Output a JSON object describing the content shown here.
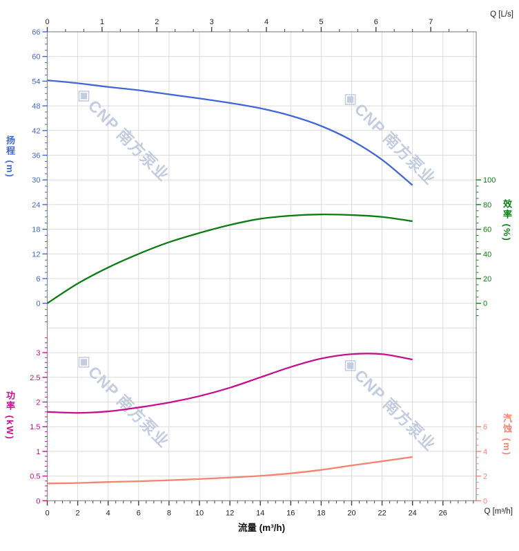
{
  "chart_data": {
    "type": "line",
    "title": "",
    "x_label_bottom": "流量 (m³/h)",
    "x_unit_bottom_label": "Q [m³/h]",
    "x_unit_top_label": "Q [L/s]",
    "x_m3h": [
      0,
      2,
      4,
      6,
      8,
      10,
      12,
      14,
      16,
      18,
      20,
      22,
      24
    ],
    "series": [
      {
        "id": "head",
        "name": "扬程",
        "unit": "m",
        "axis": "head",
        "values": [
          54.2,
          53.5,
          52.6,
          51.8,
          50.8,
          49.8,
          48.7,
          47.4,
          45.6,
          43.1,
          39.6,
          34.9,
          28.7
        ]
      },
      {
        "id": "efficiency",
        "name": "效率",
        "unit": "%",
        "axis": "efficiency",
        "values": [
          0,
          16,
          29,
          40,
          49.5,
          57,
          63.5,
          68.5,
          71,
          72,
          71.5,
          70,
          66.5
        ]
      },
      {
        "id": "power",
        "name": "功率",
        "unit": "kW",
        "axis": "power",
        "values": [
          1.8,
          1.78,
          1.81,
          1.89,
          1.99,
          2.12,
          2.29,
          2.5,
          2.71,
          2.88,
          2.97,
          2.97,
          2.86
        ]
      },
      {
        "id": "npsh",
        "name": "汽蚀",
        "unit": "m",
        "axis": "npsh",
        "values": [
          1.4,
          1.44,
          1.52,
          1.58,
          1.66,
          1.76,
          1.88,
          2.02,
          2.22,
          2.5,
          2.86,
          3.2,
          3.55
        ]
      }
    ],
    "axes": {
      "top": {
        "label": "Q [L/s]",
        "ticks": [
          0,
          1,
          2,
          3,
          4,
          5,
          6,
          7
        ],
        "minor_step": 0.3333,
        "range": [
          0,
          7.83
        ],
        "unit": "L/s"
      },
      "bottom": {
        "label": "Q [m³/h]",
        "title": "流量 (m³/h)",
        "ticks": [
          0,
          2,
          4,
          6,
          8,
          10,
          12,
          14,
          16,
          18,
          20,
          22,
          24,
          26
        ],
        "minor_step": 0.5,
        "range": [
          0,
          28.2
        ],
        "unit": "m³/h"
      },
      "head": {
        "title": "扬程 (m)",
        "ticks": [
          0,
          6,
          12,
          18,
          24,
          30,
          36,
          42,
          48,
          54,
          60,
          66
        ],
        "minor_step": 1.5,
        "range": [
          0,
          66
        ]
      },
      "efficiency": {
        "title": "效率 (%)",
        "ticks": [
          0,
          20,
          40,
          60,
          80,
          100
        ],
        "minor_step": 5,
        "range": [
          0,
          100
        ]
      },
      "power": {
        "title": "功率 (kW)",
        "ticks": [
          0,
          0.5,
          1,
          1.5,
          2,
          2.5,
          3
        ],
        "minor_step": 0.1,
        "range": [
          0,
          3
        ]
      },
      "npsh": {
        "title": "汽蚀 (m)",
        "ticks": [
          0,
          2,
          4,
          6
        ],
        "minor_step": 0.5,
        "range": [
          0,
          6
        ]
      }
    },
    "colors": {
      "head": "#4166D8",
      "efficiency": "#0B7C10",
      "power": "#C60F8D",
      "npsh": "#F4836F",
      "grid": "#DBDBDB",
      "spine": "#8A8A8A",
      "tick_text": "#1F1F1F",
      "watermark": "#C3CDE0"
    },
    "legend": "none",
    "grid": "on",
    "watermark": {
      "glyph": "◈",
      "text": "CNP 南方泵业"
    }
  }
}
